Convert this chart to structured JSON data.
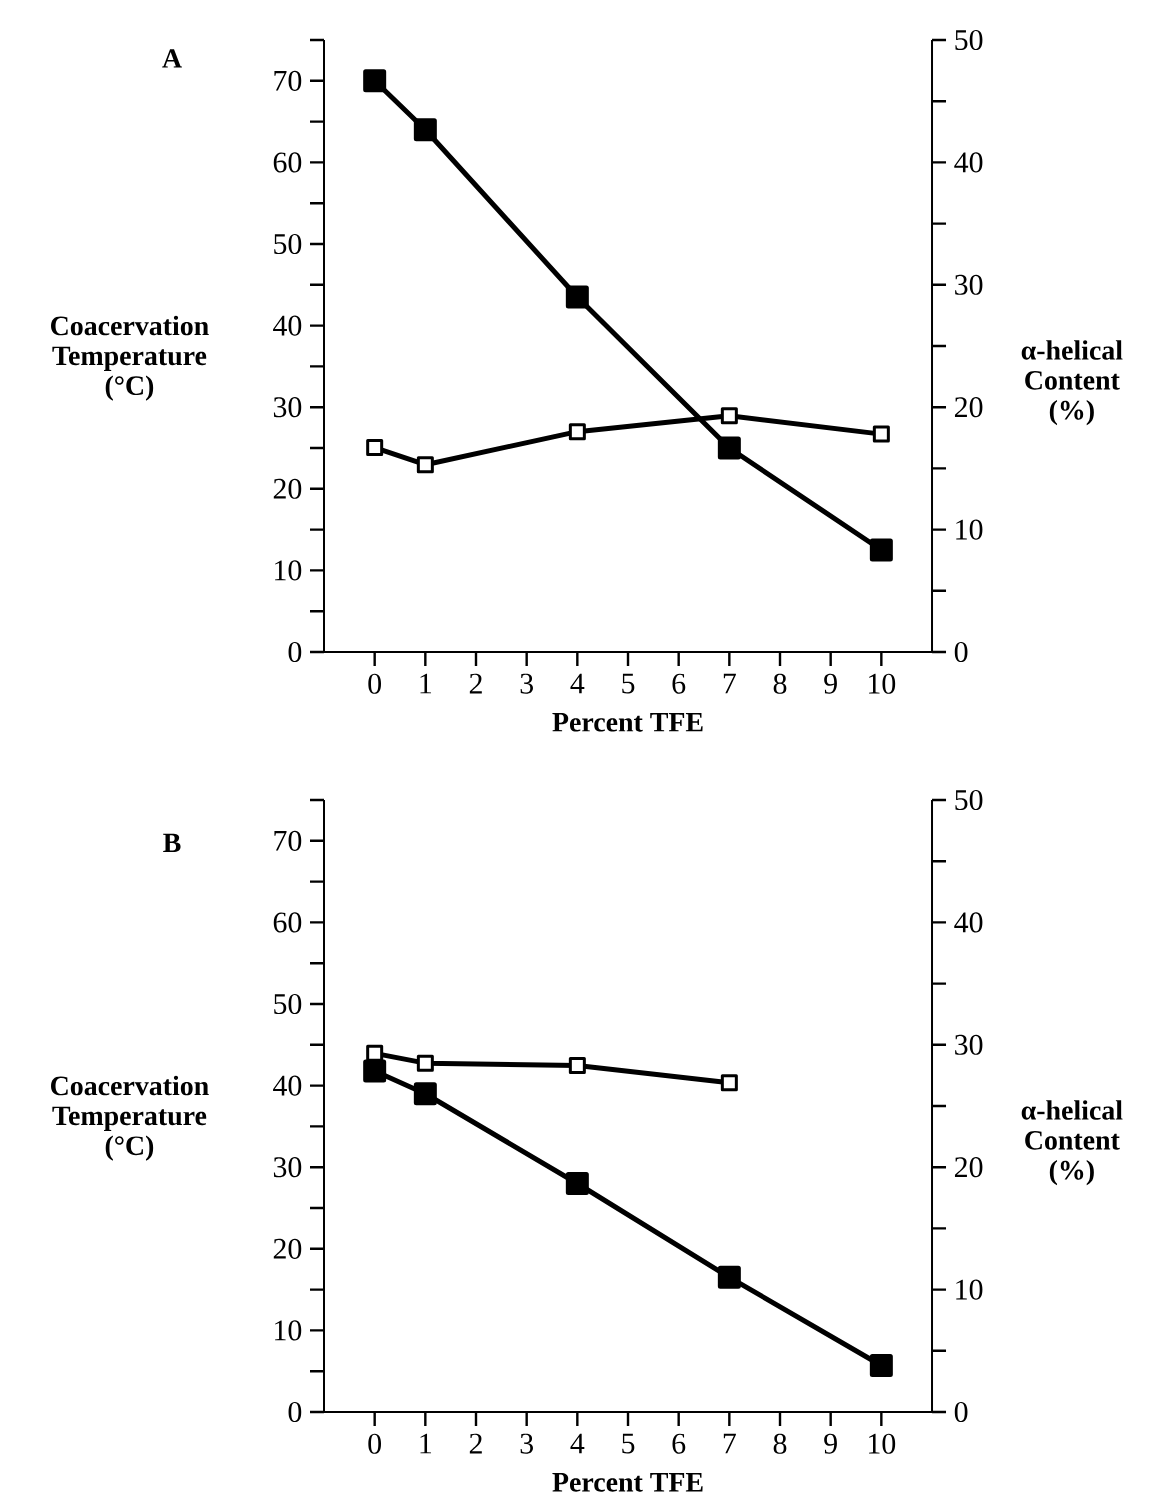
{
  "chart_data": [
    {
      "type": "line",
      "title": "A",
      "xlabel": "Percent TFE",
      "ylabel": "Coacervation Temperature (°C)",
      "y2label": "α-helical Content (%)",
      "x": [
        0,
        1,
        4,
        7,
        10
      ],
      "series": [
        {
          "color": "#000000",
          "values": [
            70,
            64,
            43.5,
            25,
            12.5
          ]
        },
        {
          "color": "#000000",
          "axis": "y2",
          "values": [
            16.7,
            15.3,
            18,
            19.3,
            17.8
          ]
        }
      ],
      "xlim": [
        -1,
        11
      ],
      "xticks": [
        0,
        1,
        2,
        3,
        4,
        5,
        6,
        7,
        8,
        9,
        10
      ],
      "ylim": [
        0,
        75
      ],
      "yticks": [
        0,
        {
          "value": 5,
          "label": null
        },
        10,
        {
          "value": 15,
          "label": null
        },
        20,
        {
          "value": 25,
          "label": null
        },
        30,
        {
          "value": 35,
          "label": null
        },
        40,
        {
          "value": 45,
          "label": null
        },
        50,
        {
          "value": 55,
          "label": null
        },
        60,
        {
          "value": 65,
          "label": null
        },
        70,
        {
          "value": 75,
          "label": null
        }
      ],
      "y2lim": [
        0,
        50
      ],
      "y2ticks": [
        0,
        {
          "value": 5,
          "label": null
        },
        10,
        {
          "value": 15,
          "label": null
        },
        20,
        {
          "value": 25,
          "label": null
        },
        30,
        {
          "value": 35,
          "label": null
        },
        40,
        {
          "value": 45,
          "label": null
        },
        50
      ],
      "marker": "square"
    },
    {
      "type": "line",
      "title": "B",
      "xlabel": "Percent TFE",
      "ylabel": "Coacervation Temperature (°C)",
      "y2label": "α-helical Content (%)",
      "x": [
        0,
        1,
        4,
        7,
        10
      ],
      "series": [
        {
          "color": "#000000",
          "values": [
            41.8,
            39,
            28,
            16.5,
            5.7
          ]
        },
        {
          "color": "#000000",
          "axis": "y2",
          "x": [
            0,
            1,
            4,
            7
          ],
          "values": [
            29.3,
            28.5,
            28.3,
            26.9
          ]
        }
      ],
      "xlim": [
        -1,
        11
      ],
      "xticks": [
        0,
        1,
        2,
        3,
        4,
        5,
        6,
        7,
        8,
        9,
        10
      ],
      "ylim": [
        0,
        75
      ],
      "yticks": [
        0,
        {
          "value": 5,
          "label": null
        },
        10,
        {
          "value": 15,
          "label": null
        },
        20,
        {
          "value": 25,
          "label": null
        },
        30,
        {
          "value": 35,
          "label": null
        },
        40,
        {
          "value": 45,
          "label": null
        },
        50,
        {
          "value": 55,
          "label": null
        },
        60,
        {
          "value": 65,
          "label": null
        },
        70,
        {
          "value": 75,
          "label": null
        }
      ],
      "y2lim": [
        0,
        50
      ],
      "y2ticks": [
        0,
        {
          "value": 5,
          "label": null
        },
        10,
        {
          "value": 15,
          "label": null
        },
        20,
        {
          "value": 25,
          "label": null
        },
        30,
        {
          "value": 35,
          "label": null
        },
        40,
        {
          "value": 45,
          "label": null
        },
        50
      ],
      "marker": "square"
    }
  ]
}
